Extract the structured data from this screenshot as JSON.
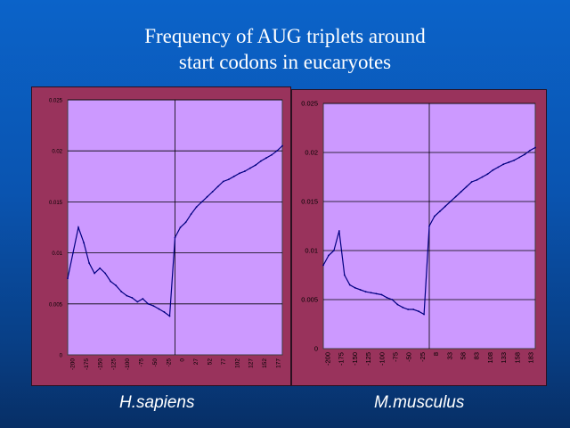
{
  "slide": {
    "title_line1": "Frequency of AUG triplets around",
    "title_line2": "start codons in eucaryotes",
    "background": "#0a57b8",
    "panel_color": "#99335c",
    "plot_color": "#cc99ff",
    "line_color": "#000080"
  },
  "chart_data": [
    {
      "type": "line",
      "title": "",
      "caption": "H.sapiens",
      "xlabel": "",
      "ylabel": "",
      "ylim": [
        0,
        0.025
      ],
      "yticks": [
        "0",
        "0.005",
        "0.01",
        "0.015",
        "0.02",
        "0.025"
      ],
      "xticks": [
        "-200",
        "-175",
        "-150",
        "-125",
        "-100",
        "-75",
        "-50",
        "-25",
        "0",
        "27",
        "52",
        "77",
        "102",
        "127",
        "152",
        "177"
      ],
      "x_range": [
        -200,
        200
      ],
      "start_codon_x": 0,
      "grid": "horizontal",
      "series": [
        {
          "x": [
            -200,
            -190,
            -180,
            -170,
            -160,
            -150,
            -140,
            -130,
            -120,
            -110,
            -100,
            -90,
            -80,
            -70,
            -60,
            -50,
            -40,
            -30,
            -20,
            -10,
            0,
            10,
            20,
            30,
            40,
            50,
            60,
            70,
            80,
            90,
            100,
            110,
            120,
            130,
            140,
            150,
            160,
            170,
            180,
            190,
            200
          ],
          "values": [
            0.0075,
            0.01,
            0.0125,
            0.011,
            0.009,
            0.008,
            0.0085,
            0.008,
            0.0072,
            0.0068,
            0.0062,
            0.0058,
            0.0056,
            0.0052,
            0.0055,
            0.005,
            0.0048,
            0.0045,
            0.0042,
            0.0038,
            0.0115,
            0.0125,
            0.013,
            0.0138,
            0.0145,
            0.015,
            0.0155,
            0.016,
            0.0165,
            0.017,
            0.0172,
            0.0175,
            0.0178,
            0.018,
            0.0183,
            0.0186,
            0.019,
            0.0193,
            0.0196,
            0.02,
            0.0205
          ]
        }
      ]
    },
    {
      "type": "line",
      "title": "",
      "caption": "M.musculus",
      "xlabel": "",
      "ylabel": "",
      "ylim": [
        0,
        0.025
      ],
      "yticks": [
        "0",
        "0.005",
        "0.01",
        "0.015",
        "0.02",
        "0.025"
      ],
      "xticks": [
        "-200",
        "-175",
        "-150",
        "-125",
        "-100",
        "-75",
        "-50",
        "-25",
        "8",
        "33",
        "58",
        "83",
        "108",
        "133",
        "158",
        "183"
      ],
      "x_range": [
        -200,
        200
      ],
      "start_codon_x": 0,
      "grid": "horizontal",
      "series": [
        {
          "x": [
            -200,
            -190,
            -180,
            -170,
            -160,
            -150,
            -140,
            -130,
            -120,
            -110,
            -100,
            -90,
            -80,
            -70,
            -60,
            -50,
            -40,
            -30,
            -20,
            -10,
            0,
            10,
            20,
            30,
            40,
            50,
            60,
            70,
            80,
            90,
            100,
            110,
            120,
            130,
            140,
            150,
            160,
            170,
            180,
            190,
            200
          ],
          "values": [
            0.0085,
            0.0095,
            0.01,
            0.012,
            0.0075,
            0.0065,
            0.0062,
            0.006,
            0.0058,
            0.0057,
            0.0056,
            0.0055,
            0.0052,
            0.005,
            0.0045,
            0.0042,
            0.004,
            0.004,
            0.0038,
            0.0035,
            0.0125,
            0.0135,
            0.014,
            0.0145,
            0.015,
            0.0155,
            0.016,
            0.0165,
            0.017,
            0.0172,
            0.0175,
            0.0178,
            0.0182,
            0.0185,
            0.0188,
            0.019,
            0.0192,
            0.0195,
            0.0198,
            0.0202,
            0.0205
          ]
        }
      ]
    }
  ]
}
